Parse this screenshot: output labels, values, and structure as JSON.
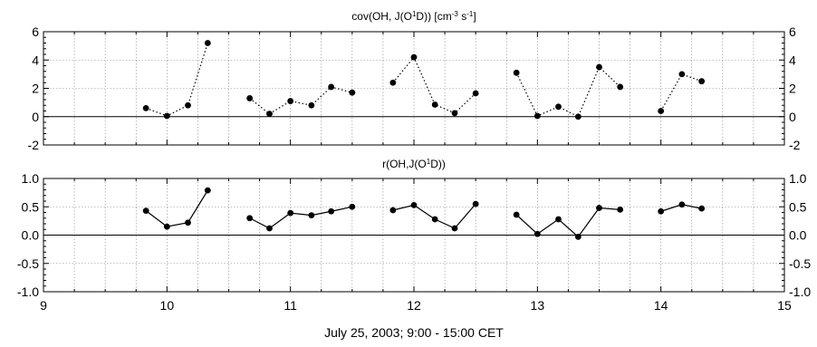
{
  "xlabel": "July 25, 2003; 9:00 - 15:00 CET",
  "chart_data": [
    {
      "type": "line",
      "title_main": "cov(OH, J(O",
      "title_sup": "1",
      "title_mid": "D)) [cm",
      "title_sup2": "-3",
      "title_end": " s",
      "title_sup3": "-1",
      "title_close": "]",
      "line_style": "dotted",
      "xlim": [
        9,
        15
      ],
      "ylim": [
        -2,
        6
      ],
      "yticks": [
        -2,
        0,
        2,
        4,
        6
      ],
      "ytick_labels": [
        "-2",
        "0",
        "2",
        "4",
        "6"
      ],
      "grid": true,
      "series": [
        {
          "segments": [
            {
              "x": [
                9.83,
                10.0,
                10.17,
                10.33
              ],
              "y": [
                0.6,
                0.05,
                0.8,
                5.2
              ]
            },
            {
              "x": [
                10.67,
                10.83,
                11.0,
                11.17,
                11.33,
                11.5
              ],
              "y": [
                1.3,
                0.2,
                1.1,
                0.8,
                2.1,
                1.7
              ]
            },
            {
              "x": [
                11.83,
                12.0,
                12.17,
                12.33,
                12.5
              ],
              "y": [
                2.4,
                4.2,
                0.85,
                0.25,
                1.65
              ]
            },
            {
              "x": [
                12.83,
                13.0,
                13.17,
                13.33,
                13.5,
                13.67
              ],
              "y": [
                3.1,
                0.05,
                0.7,
                0.0,
                3.5,
                2.1
              ]
            },
            {
              "x": [
                14.0,
                14.17,
                14.33
              ],
              "y": [
                0.4,
                3.0,
                2.5
              ]
            }
          ]
        }
      ]
    },
    {
      "type": "line",
      "title_main": "r(OH,J(O",
      "title_sup": "1",
      "title_mid": "D))",
      "line_style": "solid",
      "xlim": [
        9,
        15
      ],
      "ylim": [
        -1.0,
        1.0
      ],
      "yticks": [
        -1.0,
        -0.5,
        0.0,
        0.5,
        1.0
      ],
      "ytick_labels": [
        "-1.0",
        "-0.5",
        "0.0",
        "0.5",
        "1.0"
      ],
      "grid": true,
      "series": [
        {
          "segments": [
            {
              "x": [
                9.83,
                10.0,
                10.17,
                10.33
              ],
              "y": [
                0.43,
                0.15,
                0.22,
                0.79
              ]
            },
            {
              "x": [
                10.67,
                10.83,
                11.0,
                11.17,
                11.33,
                11.5
              ],
              "y": [
                0.3,
                0.12,
                0.39,
                0.35,
                0.42,
                0.5
              ]
            },
            {
              "x": [
                11.83,
                12.0,
                12.17,
                12.33,
                12.5
              ],
              "y": [
                0.44,
                0.53,
                0.28,
                0.12,
                0.55
              ]
            },
            {
              "x": [
                12.83,
                13.0,
                13.17,
                13.33,
                13.5,
                13.67
              ],
              "y": [
                0.36,
                0.02,
                0.28,
                -0.03,
                0.48,
                0.45
              ]
            },
            {
              "x": [
                14.0,
                14.17,
                14.33
              ],
              "y": [
                0.42,
                0.54,
                0.47
              ]
            }
          ]
        }
      ]
    }
  ],
  "xticks": [
    9,
    10,
    11,
    12,
    13,
    14,
    15
  ],
  "xtick_labels": [
    "9",
    "10",
    "11",
    "12",
    "13",
    "14",
    "15"
  ]
}
